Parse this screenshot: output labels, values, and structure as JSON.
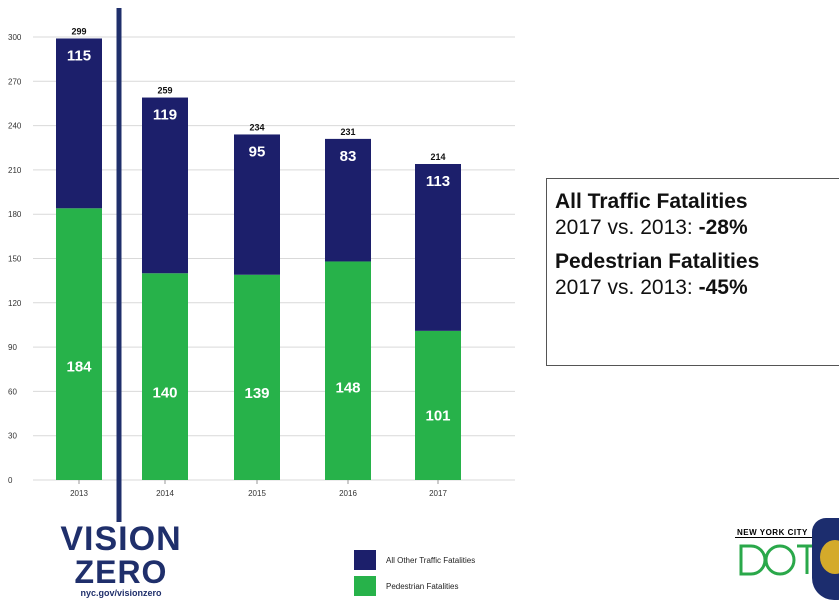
{
  "chart_data": {
    "type": "bar",
    "stacked": true,
    "categories": [
      "2013",
      "2014",
      "2015",
      "2016",
      "2017"
    ],
    "series": [
      {
        "name": "Pedestrian Fatalities",
        "values": [
          184,
          140,
          139,
          148,
          101
        ],
        "color": "#27b24a"
      },
      {
        "name": "All Other Traffic Fatalities",
        "values": [
          115,
          119,
          95,
          83,
          113
        ],
        "color": "#1c1f6b"
      }
    ],
    "totals": [
      299,
      259,
      234,
      231,
      214
    ],
    "yticks": [
      0,
      30,
      60,
      90,
      120,
      150,
      180,
      210,
      240,
      270,
      300
    ],
    "ylim": [
      0,
      300
    ],
    "grid": true,
    "legend_position": "bottom"
  },
  "stats": {
    "all_title": "All Traffic Fatalities",
    "all_prefix": "2017 vs. 2013: ",
    "all_value": "-28%",
    "ped_title": "Pedestrian Fatalities",
    "ped_prefix": "2017 vs. 2013: ",
    "ped_value": "-45%"
  },
  "legend": {
    "other_label": "All Other Traffic Fatalities",
    "ped_label": "Pedestrian Fatalities"
  },
  "logos": {
    "vision": "VISION",
    "zero": "ZERO",
    "url": "nyc.gov/visionzero",
    "dot_top": "NEW YORK CITY",
    "dot_word": "DOT"
  }
}
